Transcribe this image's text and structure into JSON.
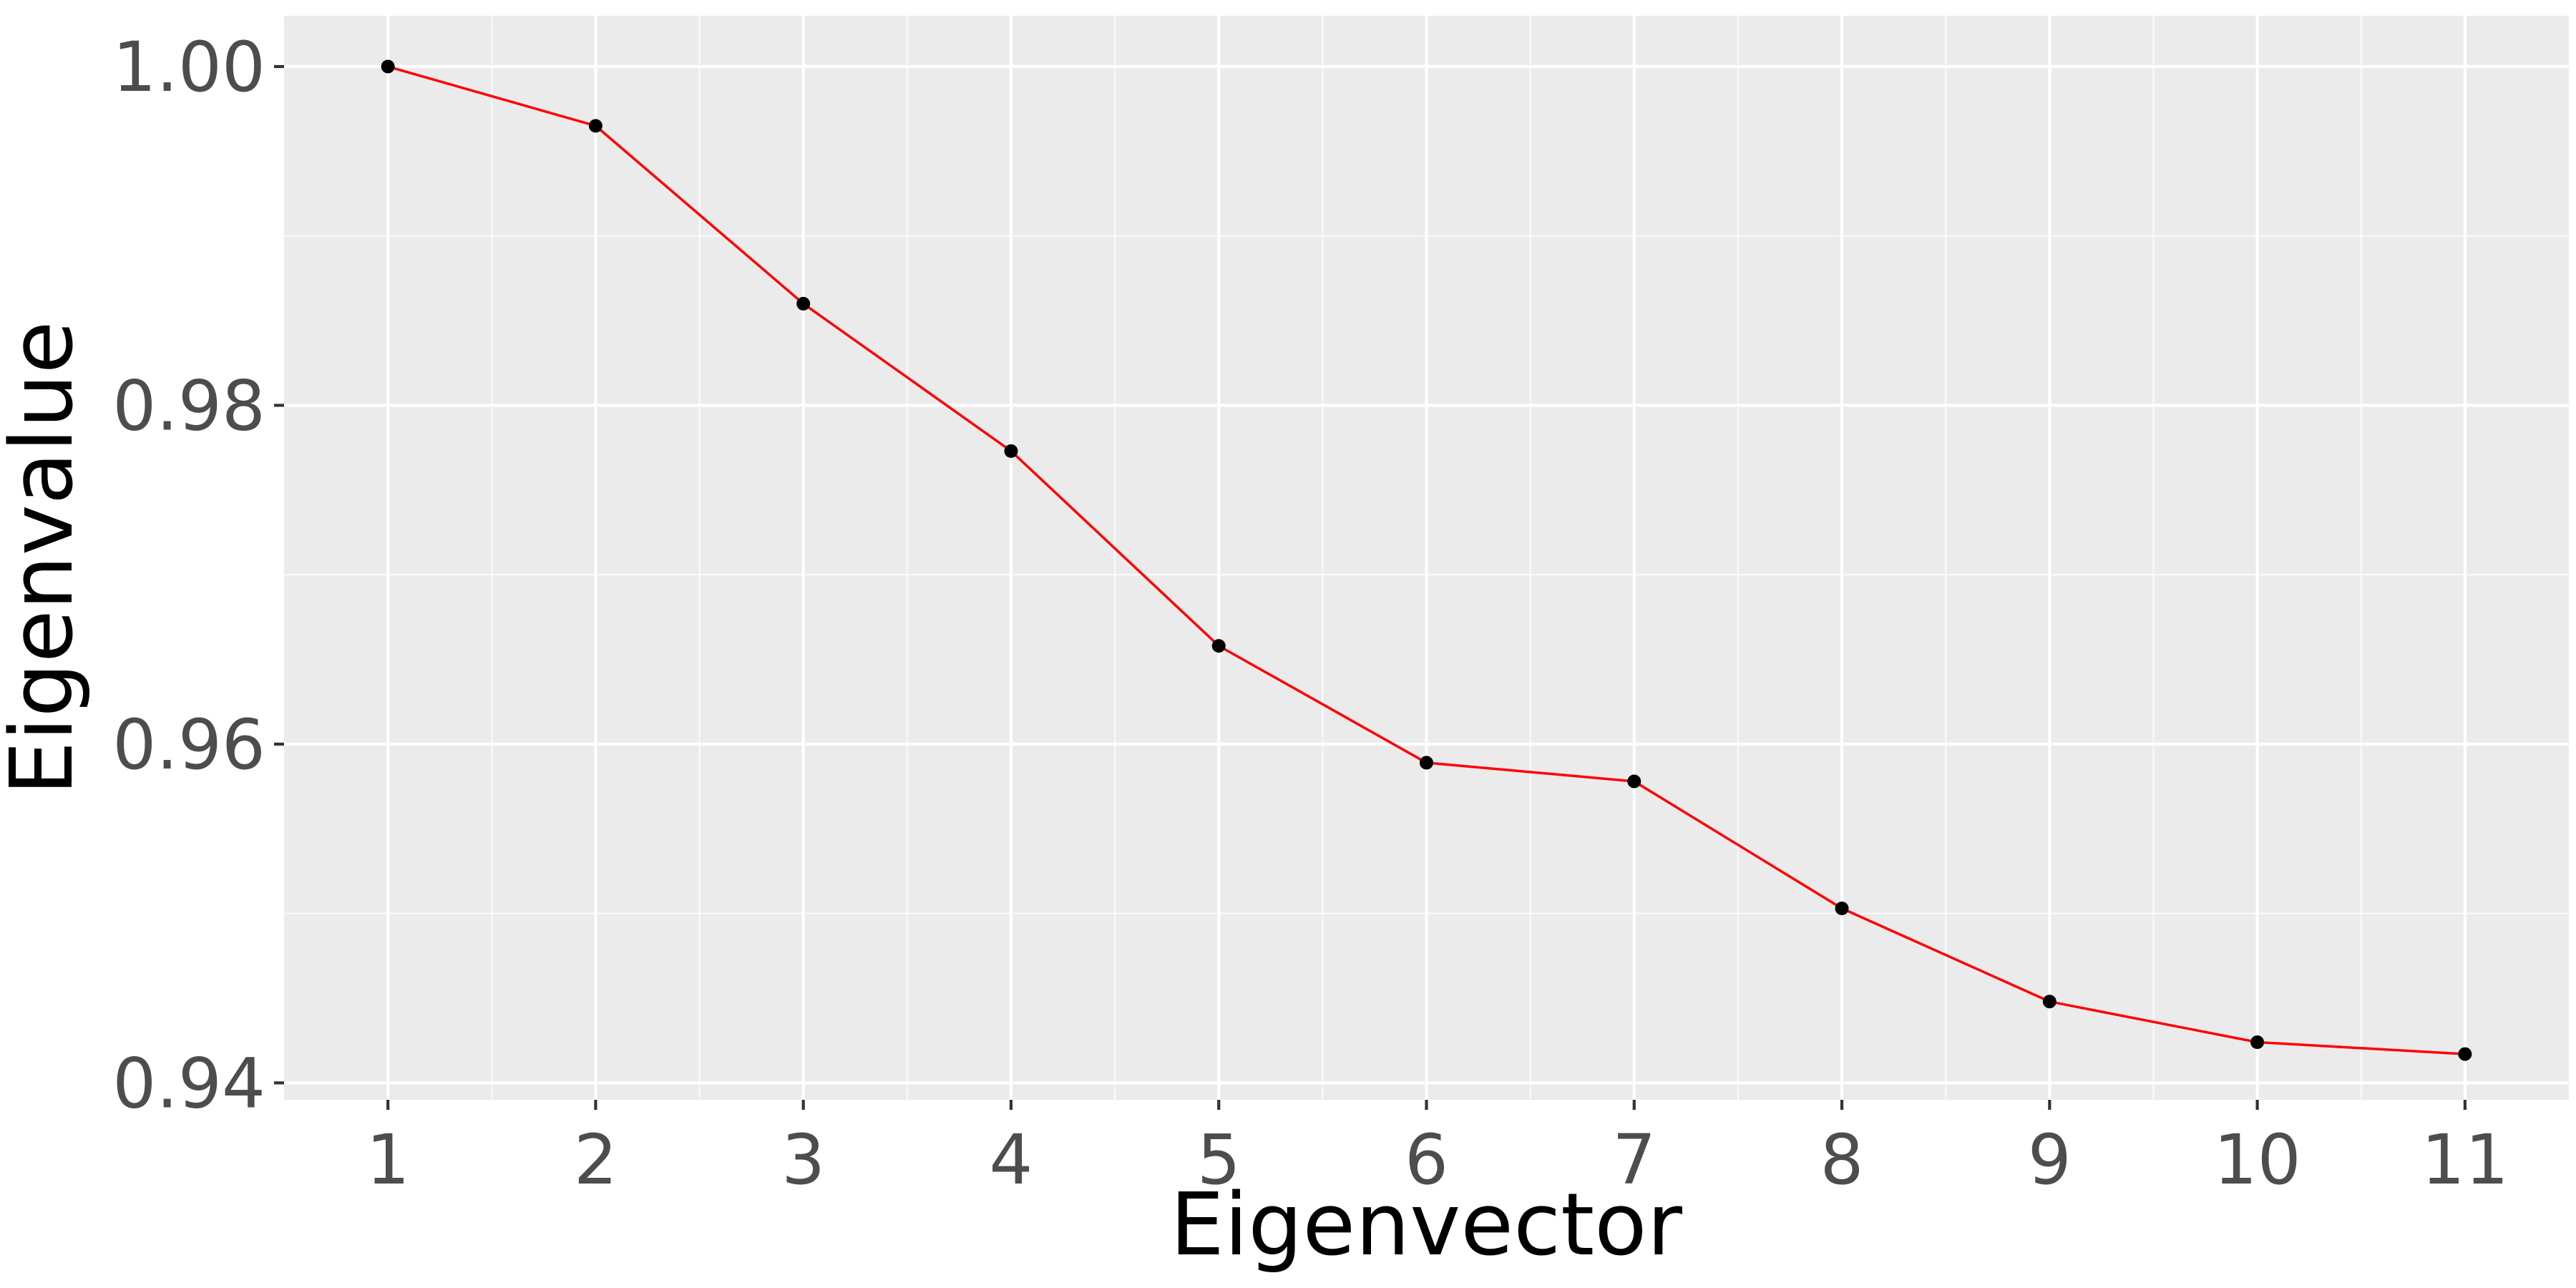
{
  "chart_data": {
    "type": "line",
    "title": "",
    "xlabel": "Eigenvector",
    "ylabel": "Eigenvalue",
    "x": [
      1,
      2,
      3,
      4,
      5,
      6,
      7,
      8,
      9,
      10,
      11
    ],
    "series": [
      {
        "values": [
          1.0,
          0.9965,
          0.986,
          0.9773,
          0.9658,
          0.9589,
          0.9578,
          0.9503,
          0.9448,
          0.9424,
          0.9417
        ],
        "line_color": "#FF0000",
        "point_color": "#000000"
      }
    ],
    "xlim": [
      0.5,
      11.5
    ],
    "ylim": [
      0.939,
      1.003
    ],
    "x_ticks": [
      "1",
      "2",
      "3",
      "4",
      "5",
      "6",
      "7",
      "8",
      "9",
      "10",
      "11"
    ],
    "y_ticks": [
      "0.94",
      "0.96",
      "0.98",
      "1.00"
    ],
    "grid": true,
    "legend": "none",
    "panel_background": "#EBEBEB",
    "grid_color": "#FFFFFF"
  }
}
